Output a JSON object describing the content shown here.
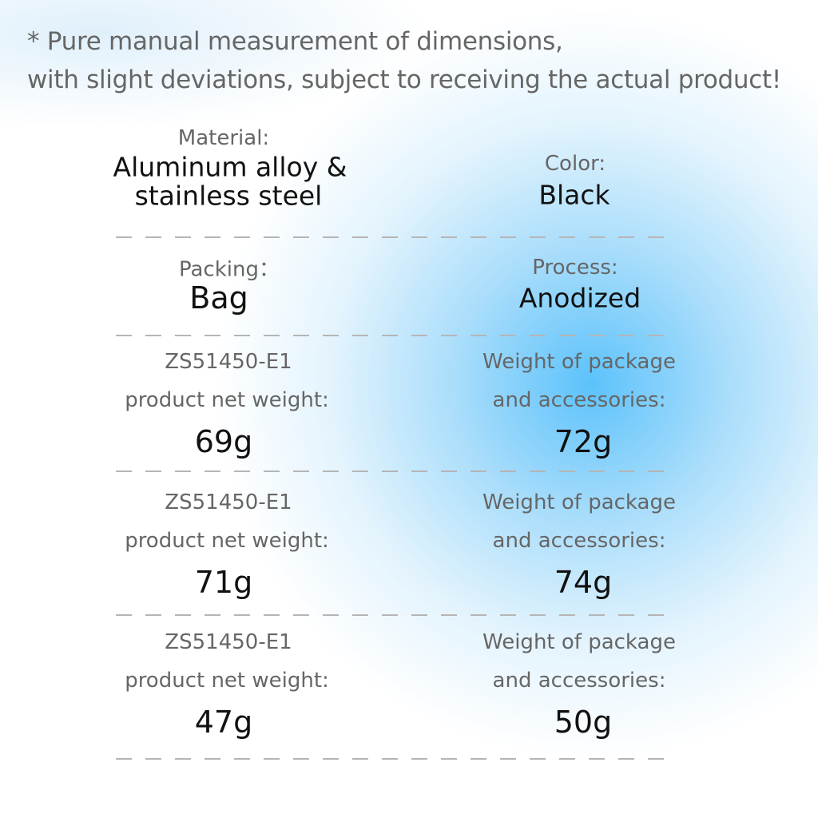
{
  "note": {
    "lines": [
      "* Pure manual measurement of dimensions,",
      "with slight deviations, subject to receiving the actual product!"
    ]
  },
  "specs": [
    {
      "label": "Material:",
      "value_lines": [
        "Aluminum alloy &",
        "stainless steel"
      ]
    },
    {
      "label": "Color:",
      "value_lines": [
        "Black"
      ]
    },
    {
      "label": "Packing：",
      "value_lines": [
        "Bag"
      ]
    },
    {
      "label": "Process:",
      "value_lines": [
        "Anodized"
      ]
    }
  ],
  "weights": [
    {
      "model": "ZS51450-E1",
      "net_label": "product net weight:",
      "net": "69g",
      "package_label_lines": [
        "Weight of package",
        "and accessories:"
      ],
      "package": "72g"
    },
    {
      "model": "ZS51450-E1",
      "net_label": "product net weight:",
      "net": "71g",
      "package_label_lines": [
        "Weight of package",
        "and accessories:"
      ],
      "package": "74g"
    },
    {
      "model": "ZS51450-E1",
      "net_label": "product net weight:",
      "net": "47g",
      "package_label_lines": [
        "Weight of package",
        "and accessories:"
      ],
      "package": "50g"
    }
  ]
}
